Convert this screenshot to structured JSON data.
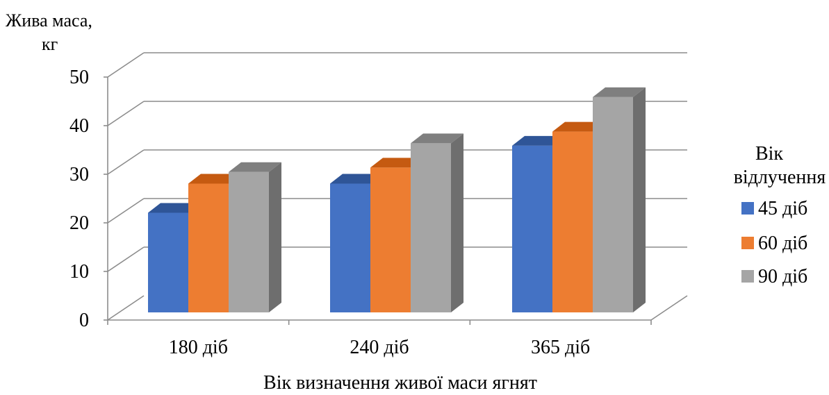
{
  "chart_data": {
    "type": "bar",
    "style": "3d-clustered-column",
    "ylabel_line1": "Жива маса,",
    "ylabel_line2": "кг",
    "xlabel": "Вік визначення живої маси ягнят",
    "categories": [
      "180 діб",
      "240 діб",
      "365 діб"
    ],
    "legend_title_line1": "Вік",
    "legend_title_line2": "відлучення",
    "legend_position": "right",
    "yticks": [
      "0",
      "10",
      "20",
      "30",
      "40",
      "50"
    ],
    "ylim": [
      0,
      50
    ],
    "grid": true,
    "series": [
      {
        "name": "45 діб",
        "values": [
          20.5,
          26.5,
          34.3
        ],
        "color": "#4472C4",
        "top": "#2F5597",
        "side": "#2F5597"
      },
      {
        "name": "60 діб",
        "values": [
          26.5,
          29.8,
          37.2
        ],
        "color": "#ED7D31",
        "top": "#C55A11",
        "side": "#C55A11"
      },
      {
        "name": "90 діб",
        "values": [
          28.9,
          34.8,
          44.3
        ],
        "color": "#A5A5A5",
        "top": "#7F7F7F",
        "side": "#6E6E6E"
      }
    ]
  }
}
